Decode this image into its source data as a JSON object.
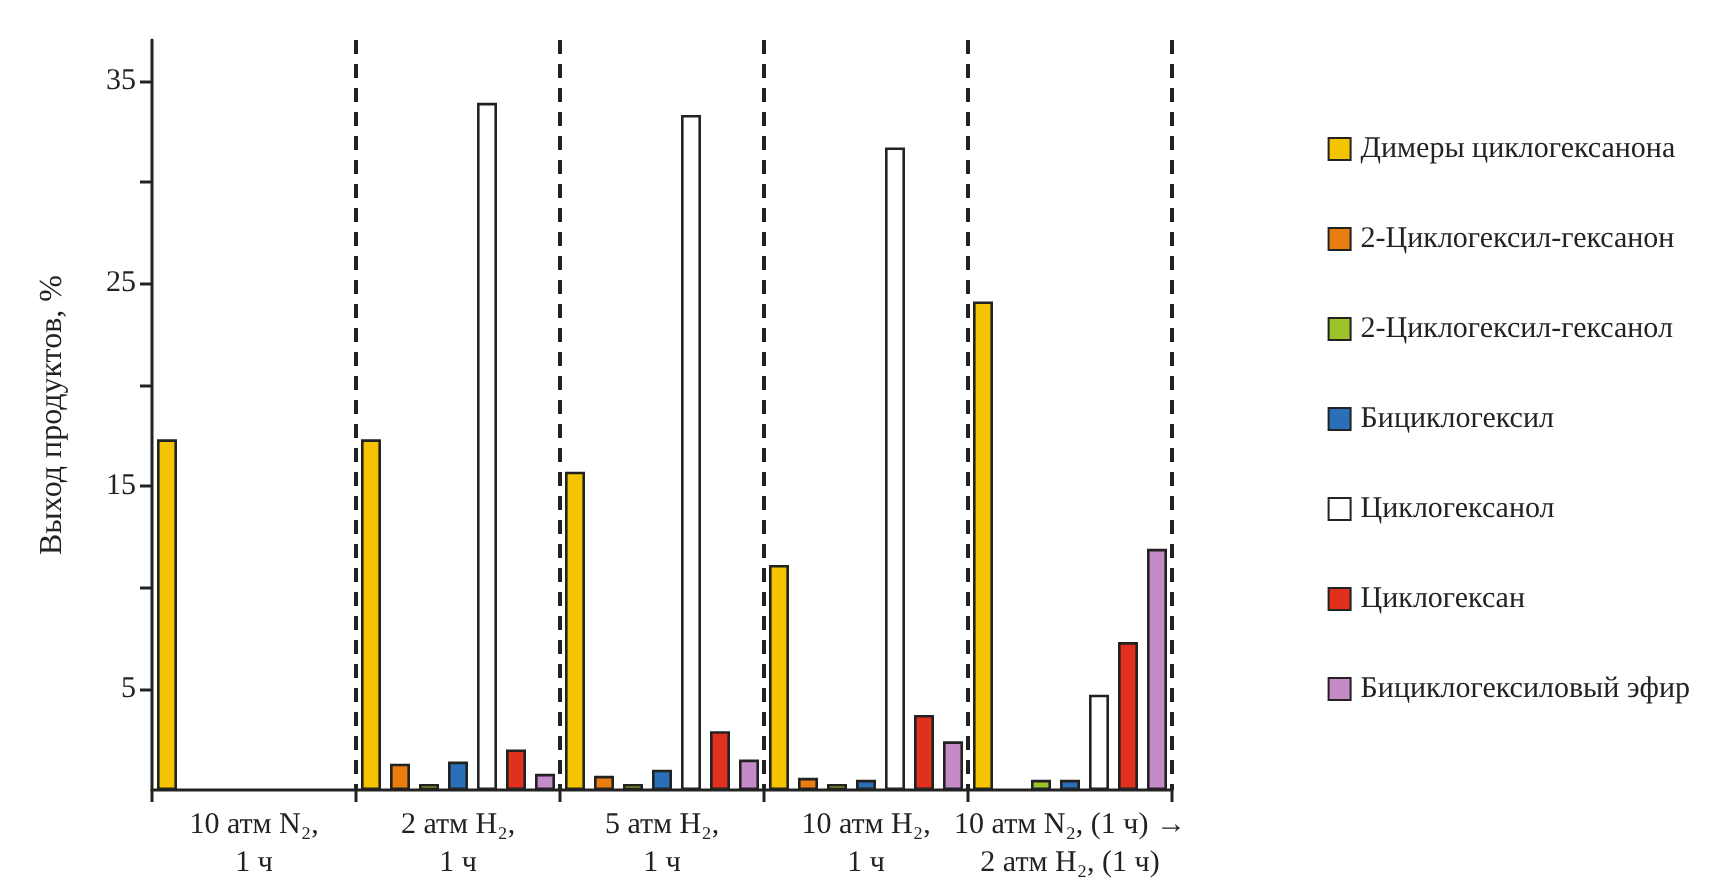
{
  "chart_data": {
    "type": "bar",
    "ylabel": "Выход продуктов, %",
    "categories": [
      "10 атм N₂,\n1 ч",
      "2 атм H₂,\n1 ч",
      "5 атм H₂,\n1 ч",
      "10 атм H₂,\n1 ч",
      "10 атм N₂, (1 ч) →\n2 атм H₂, (1 ч)"
    ],
    "series": [
      {
        "name": "Димеры циклогексанона",
        "color": "#f5c400",
        "values": [
          17.3,
          17.3,
          15.7,
          11.1,
          24.1
        ]
      },
      {
        "name": "2-Циклогексил-гексанон",
        "color": "#e87d10",
        "values": [
          null,
          1.3,
          0.7,
          0.6,
          null
        ]
      },
      {
        "name": "2-Циклогексил-гексанол",
        "color": "#9cc42a",
        "values": [
          null,
          0.3,
          0.3,
          0.3,
          0.5
        ]
      },
      {
        "name": "Бициклогексил",
        "color": "#2a70b8",
        "values": [
          null,
          1.4,
          1.0,
          0.5,
          0.5
        ]
      },
      {
        "name": "Циклогексанол",
        "color": "#ffffff",
        "values": [
          null,
          33.9,
          33.3,
          31.7,
          4.7
        ]
      },
      {
        "name": "Циклогексан",
        "color": "#e0301e",
        "values": [
          null,
          2.0,
          2.9,
          3.7,
          7.3
        ]
      },
      {
        "name": "Бициклогексиловый эфир",
        "color": "#c58ac8",
        "values": [
          null,
          0.8,
          1.5,
          2.4,
          11.9
        ]
      }
    ],
    "ylim": [
      0,
      37
    ],
    "yticks": [
      5,
      {
        "value": 10,
        "label": null
      },
      15,
      {
        "value": 20,
        "label": null
      },
      25,
      {
        "value": 30,
        "label": null
      },
      35
    ],
    "grid": "x",
    "legend": "right"
  }
}
